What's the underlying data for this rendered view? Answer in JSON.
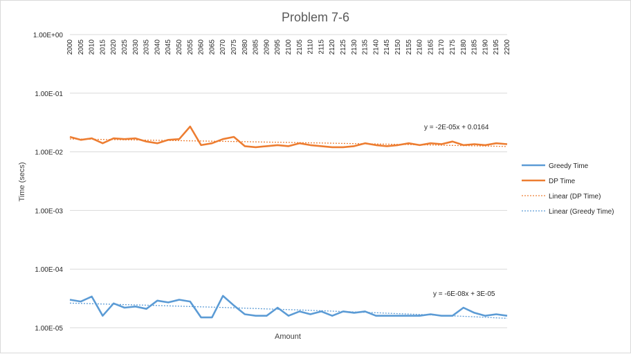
{
  "chart_data": {
    "type": "line",
    "title": "Problem 7-6",
    "xlabel": "Amount",
    "ylabel": "Time (secs)",
    "yscale": "log",
    "ylim": [
      1e-05,
      1
    ],
    "ytick_labels": [
      "1.00E-05",
      "1.00E-04",
      "1.00E-03",
      "1.00E-02",
      "1.00E-01",
      "1.00E+00"
    ],
    "xlim": [
      2000,
      2200
    ],
    "xtick_labels": [
      "2000",
      "2005",
      "2010",
      "2015",
      "2020",
      "2025",
      "2030",
      "2035",
      "2040",
      "2045",
      "2050",
      "2055",
      "2060",
      "2065",
      "2070",
      "2075",
      "2080",
      "2085",
      "2090",
      "2095",
      "2100",
      "2105",
      "2110",
      "2115",
      "2120",
      "2125",
      "2130",
      "2135",
      "2140",
      "2145",
      "2150",
      "2155",
      "2160",
      "2165",
      "2170",
      "2175",
      "2180",
      "2185",
      "2190",
      "2195",
      "2200"
    ],
    "xtick_position": "top",
    "legend_position": "right",
    "grid": true,
    "series": [
      {
        "name": "Greedy Time",
        "color": "#5b9bd5",
        "x": [
          2000,
          2005,
          2010,
          2015,
          2020,
          2025,
          2030,
          2035,
          2040,
          2045,
          2050,
          2055,
          2060,
          2065,
          2070,
          2075,
          2080,
          2085,
          2090,
          2095,
          2100,
          2105,
          2110,
          2115,
          2120,
          2125,
          2130,
          2135,
          2140,
          2145,
          2150,
          2155,
          2160,
          2165,
          2170,
          2175,
          2180,
          2185,
          2190,
          2195,
          2200
        ],
        "values": [
          3e-05,
          2.8e-05,
          3.4e-05,
          1.6e-05,
          2.6e-05,
          2.2e-05,
          2.3e-05,
          2.1e-05,
          2.9e-05,
          2.7e-05,
          3e-05,
          2.8e-05,
          1.5e-05,
          1.5e-05,
          3.5e-05,
          2.4e-05,
          1.7e-05,
          1.6e-05,
          1.6e-05,
          2.2e-05,
          1.6e-05,
          1.9e-05,
          1.7e-05,
          1.9e-05,
          1.6e-05,
          1.9e-05,
          1.8e-05,
          1.9e-05,
          1.6e-05,
          1.6e-05,
          1.6e-05,
          1.6e-05,
          1.6e-05,
          1.7e-05,
          1.6e-05,
          1.6e-05,
          2.2e-05,
          1.8e-05,
          1.6e-05,
          1.7e-05,
          1.6e-05
        ]
      },
      {
        "name": "DP Time",
        "color": "#ed7d31",
        "x": [
          2000,
          2005,
          2010,
          2015,
          2020,
          2025,
          2030,
          2035,
          2040,
          2045,
          2050,
          2055,
          2060,
          2065,
          2070,
          2075,
          2080,
          2085,
          2090,
          2095,
          2100,
          2105,
          2110,
          2115,
          2120,
          2125,
          2130,
          2135,
          2140,
          2145,
          2150,
          2155,
          2160,
          2165,
          2170,
          2175,
          2180,
          2185,
          2190,
          2195,
          2200
        ],
        "values": [
          0.018,
          0.016,
          0.017,
          0.014,
          0.017,
          0.0165,
          0.017,
          0.015,
          0.014,
          0.016,
          0.0165,
          0.027,
          0.013,
          0.014,
          0.0165,
          0.018,
          0.0125,
          0.012,
          0.0125,
          0.013,
          0.0125,
          0.014,
          0.013,
          0.0125,
          0.012,
          0.012,
          0.0125,
          0.014,
          0.013,
          0.0125,
          0.013,
          0.014,
          0.013,
          0.014,
          0.0135,
          0.015,
          0.013,
          0.0135,
          0.013,
          0.014,
          0.0135
        ]
      }
    ],
    "trendlines": [
      {
        "name": "Linear (DP Time)",
        "color": "#ed7d31",
        "equation": "y = -2E-05x + 0.0164"
      },
      {
        "name": "Linear (Greedy Time)",
        "color": "#5b9bd5",
        "equation": "y = -6E-08x + 3E-05"
      }
    ]
  }
}
